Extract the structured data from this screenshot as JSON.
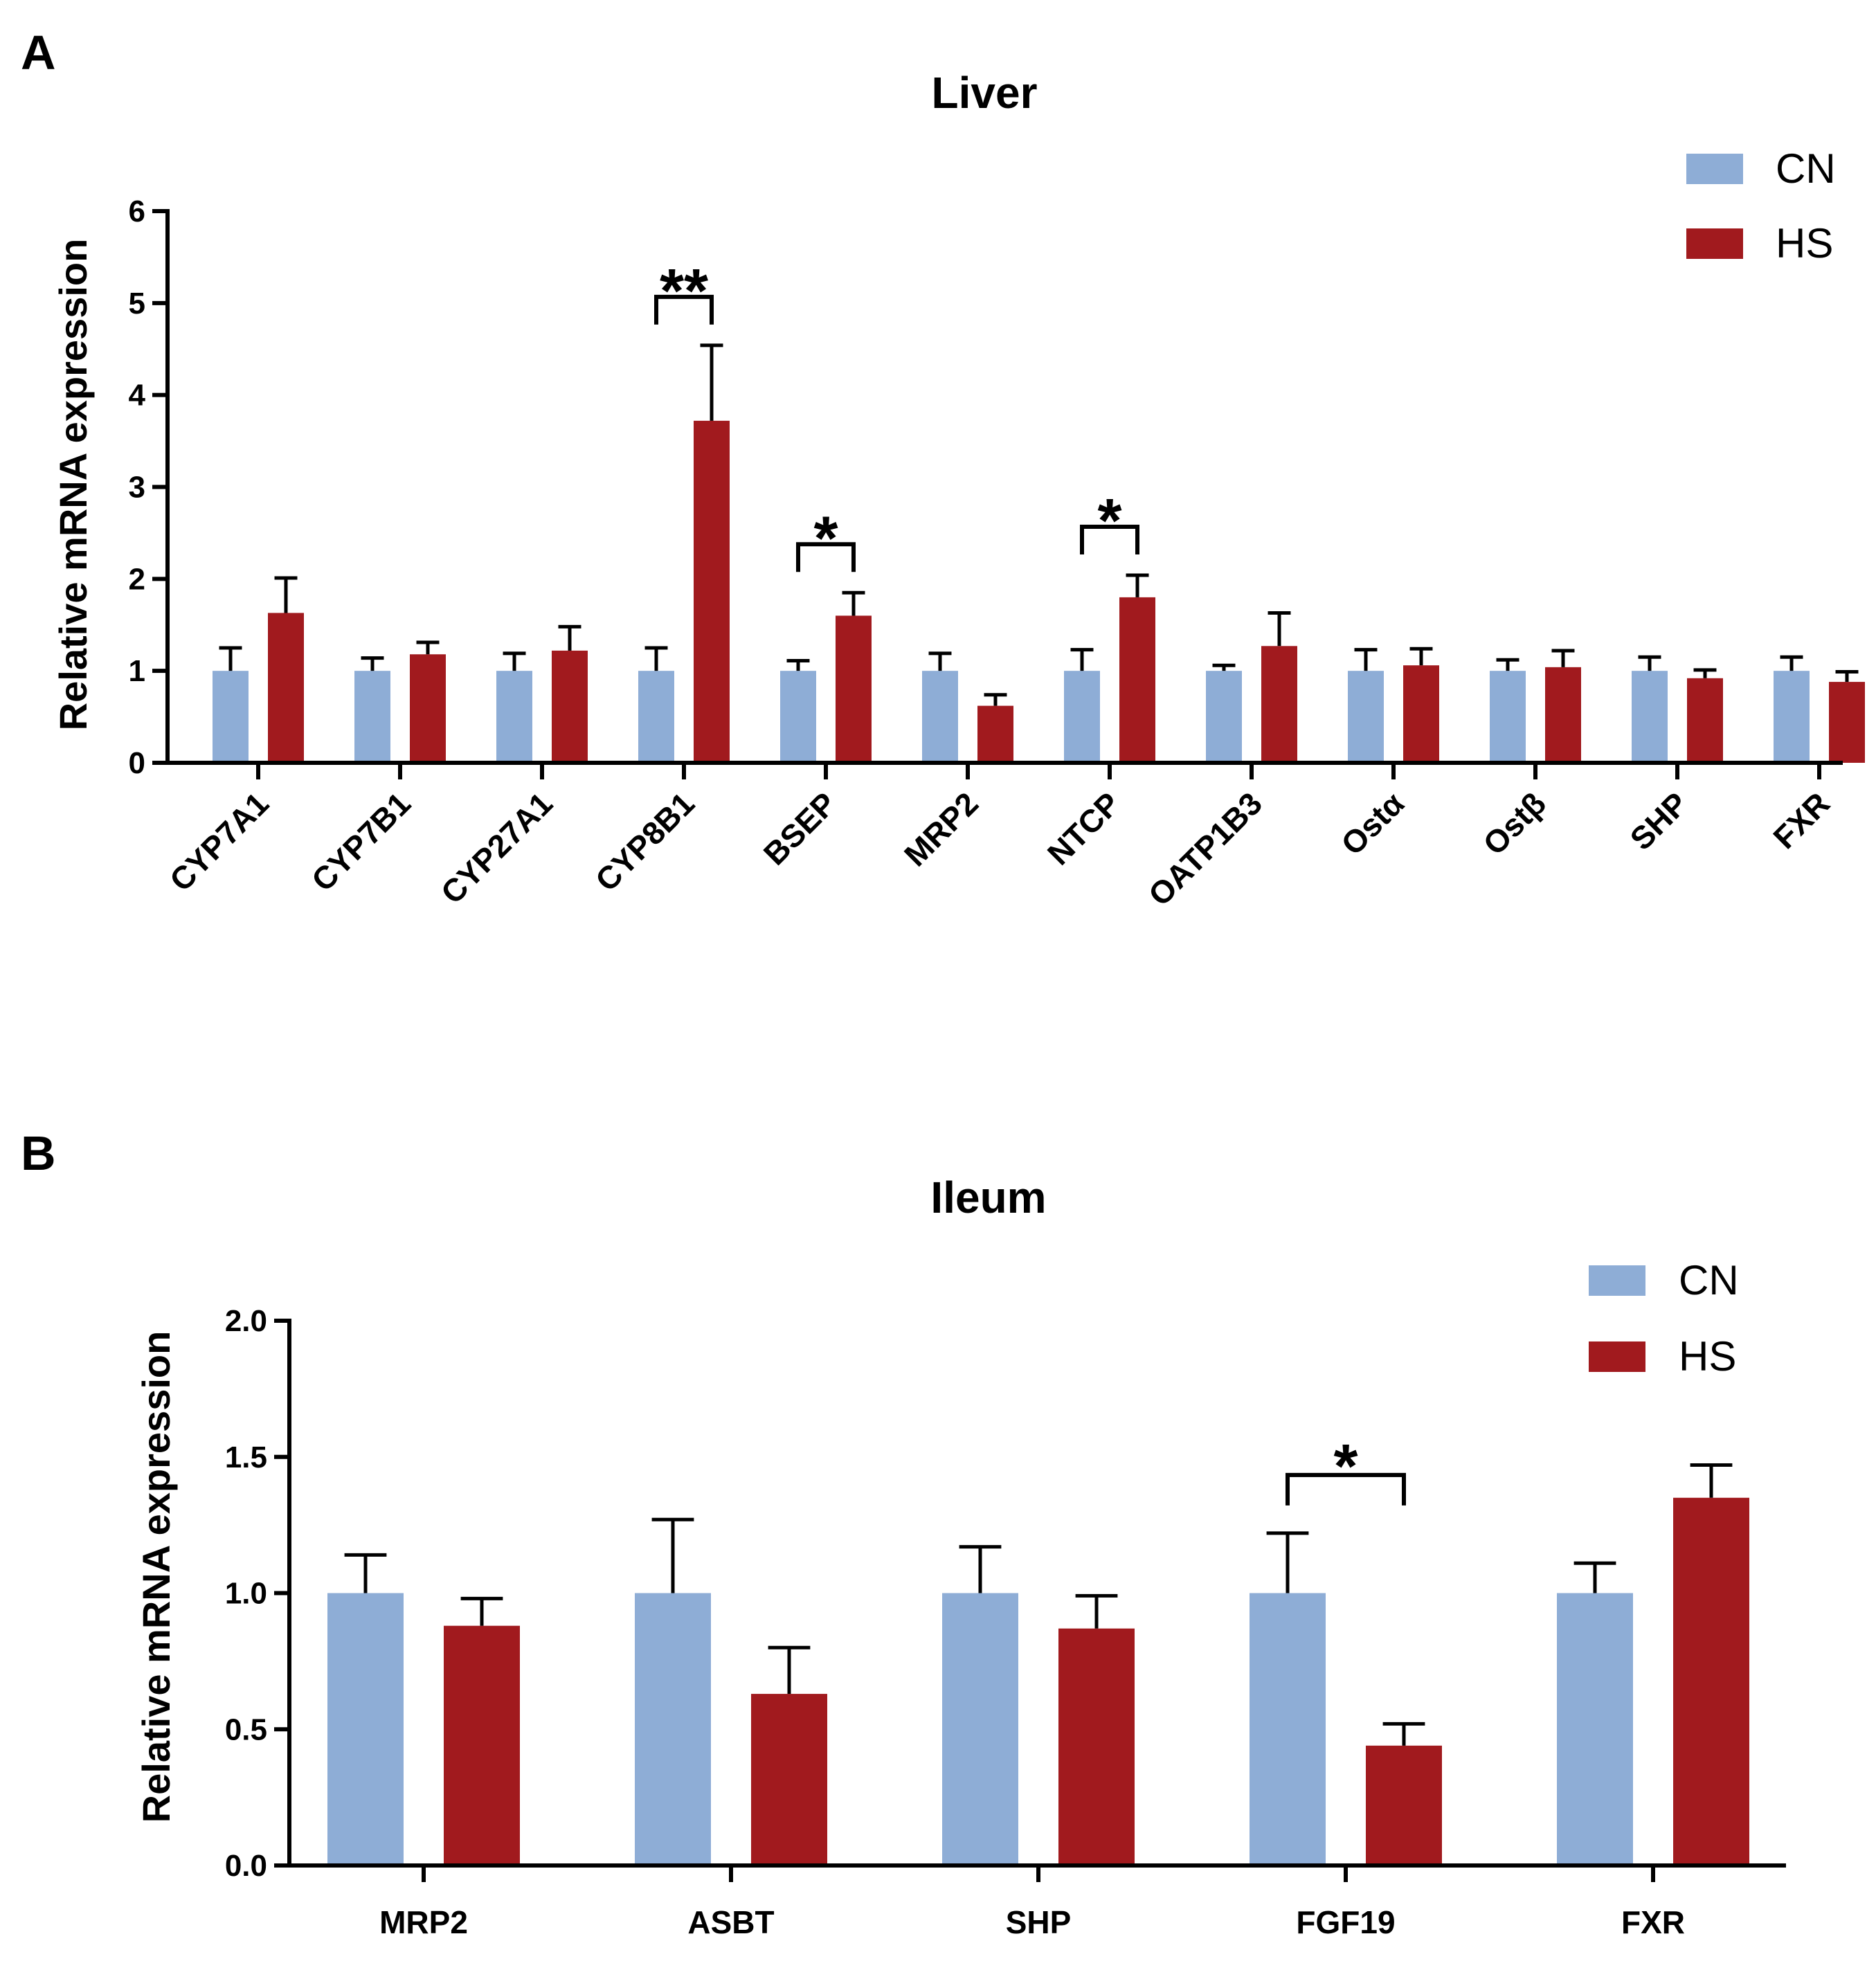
{
  "chart_data": [
    {
      "panel": "A",
      "type": "bar",
      "title": "Liver",
      "xlabel": "",
      "ylabel": "Relative mRNA expression",
      "ylim": [
        0,
        6
      ],
      "yticks": [
        0,
        1,
        2,
        3,
        4,
        5,
        6
      ],
      "ytick_labels": [
        "0",
        "1",
        "2",
        "3",
        "4",
        "5",
        "6"
      ],
      "categories": [
        "CYP7A1",
        "CYP7B1",
        "CYP27A1",
        "CYP8B1",
        "BSEP",
        "MRP2",
        "NTCP",
        "OATP1B3",
        "Ostα",
        "Ostβ",
        "SHP",
        "FXR"
      ],
      "series": [
        {
          "name": "CN",
          "color": "#8EADD6",
          "values": [
            1.0,
            1.0,
            1.0,
            1.0,
            1.0,
            1.0,
            1.0,
            1.0,
            1.0,
            1.0,
            1.0,
            1.0
          ],
          "errors": [
            0.25,
            0.14,
            0.19,
            0.25,
            0.11,
            0.19,
            0.23,
            0.06,
            0.23,
            0.12,
            0.15,
            0.15
          ]
        },
        {
          "name": "HS",
          "color": "#A11A1E",
          "values": [
            1.63,
            1.18,
            1.22,
            3.72,
            1.6,
            0.62,
            1.8,
            1.27,
            1.06,
            1.04,
            0.92,
            0.88
          ],
          "errors": [
            0.38,
            0.13,
            0.26,
            0.82,
            0.25,
            0.12,
            0.24,
            0.36,
            0.18,
            0.18,
            0.09,
            0.11
          ]
        }
      ],
      "significance": [
        {
          "category": "CYP8B1",
          "label": "**"
        },
        {
          "category": "BSEP",
          "label": "*"
        },
        {
          "category": "NTCP",
          "label": "*"
        }
      ],
      "legend": [
        "CN",
        "HS"
      ],
      "legend_position": "top-right"
    },
    {
      "panel": "B",
      "type": "bar",
      "title": "Ileum",
      "xlabel": "",
      "ylabel": "Relative mRNA expression",
      "ylim": [
        0,
        2.0
      ],
      "yticks": [
        0,
        0.5,
        1.0,
        1.5,
        2.0
      ],
      "ytick_labels": [
        "0.0",
        "0.5",
        "1.0",
        "1.5",
        "2.0"
      ],
      "categories": [
        "MRP2",
        "ASBT",
        "SHP",
        "FGF19",
        "FXR"
      ],
      "series": [
        {
          "name": "CN",
          "color": "#8EADD6",
          "values": [
            1.0,
            1.0,
            1.0,
            1.0,
            1.0
          ],
          "errors": [
            0.14,
            0.27,
            0.17,
            0.22,
            0.11
          ]
        },
        {
          "name": "HS",
          "color": "#A11A1E",
          "values": [
            0.88,
            0.63,
            0.87,
            0.44,
            1.35
          ],
          "errors": [
            0.1,
            0.17,
            0.12,
            0.08,
            0.12
          ]
        }
      ],
      "significance": [
        {
          "category": "FGF19",
          "label": "*"
        }
      ],
      "legend": [
        "CN",
        "HS"
      ],
      "legend_position": "top-right"
    }
  ]
}
